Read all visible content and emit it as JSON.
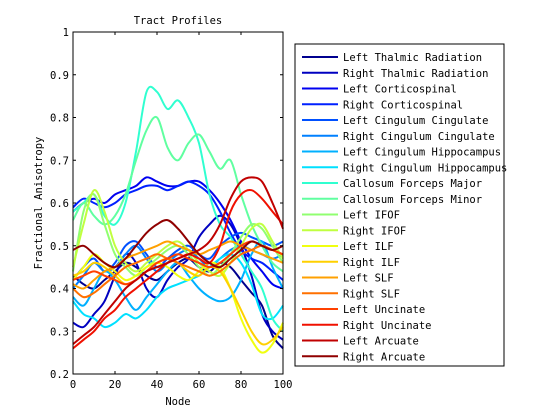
{
  "chart_data": {
    "type": "line",
    "title": "Tract Profiles",
    "xlabel": "Node",
    "ylabel": "Fractional Anisotropy",
    "xlim": [
      0,
      100
    ],
    "ylim": [
      0.2,
      1.0
    ],
    "xticks": [
      0,
      20,
      40,
      60,
      80,
      100
    ],
    "xtick_labels": [
      "0",
      "20",
      "40",
      "60",
      "80",
      "100"
    ],
    "yticks": [
      0.2,
      0.3,
      0.4,
      0.5,
      0.6,
      0.7,
      0.8,
      0.9,
      1.0
    ],
    "ytick_labels": [
      "0.2",
      "0.3",
      "0.4",
      "0.5",
      "0.6",
      "0.7",
      "0.8",
      "0.9",
      "1"
    ],
    "grid": false,
    "legend_position": "outside-right",
    "x": [
      0,
      5,
      10,
      15,
      20,
      25,
      30,
      35,
      40,
      45,
      50,
      55,
      60,
      65,
      70,
      75,
      80,
      85,
      90,
      95,
      100
    ],
    "series": [
      {
        "name": "Left Thalmic Radiation",
        "color": "#00008f",
        "values": [
          0.43,
          0.41,
          0.4,
          0.42,
          0.44,
          0.46,
          0.45,
          0.43,
          0.42,
          0.44,
          0.46,
          0.47,
          0.45,
          0.44,
          0.46,
          0.45,
          0.42,
          0.39,
          0.36,
          0.29,
          0.26
        ]
      },
      {
        "name": "Right Thalmic Radiation",
        "color": "#0000c0",
        "values": [
          0.32,
          0.31,
          0.34,
          0.37,
          0.43,
          0.48,
          0.46,
          0.4,
          0.38,
          0.42,
          0.45,
          0.47,
          0.52,
          0.55,
          0.57,
          0.55,
          0.5,
          0.43,
          0.34,
          0.3,
          0.28
        ]
      },
      {
        "name": "Left Corticospinal",
        "color": "#0000f0",
        "values": [
          0.58,
          0.6,
          0.61,
          0.6,
          0.62,
          0.63,
          0.64,
          0.66,
          0.65,
          0.64,
          0.64,
          0.65,
          0.65,
          0.63,
          0.6,
          0.56,
          0.51,
          0.47,
          0.44,
          0.41,
          0.4
        ]
      },
      {
        "name": "Right Corticospinal",
        "color": "#0020ff",
        "values": [
          0.59,
          0.61,
          0.6,
          0.59,
          0.6,
          0.62,
          0.63,
          0.64,
          0.64,
          0.63,
          0.64,
          0.65,
          0.64,
          0.62,
          0.58,
          0.53,
          0.49,
          0.47,
          0.46,
          0.44,
          0.42
        ]
      },
      {
        "name": "Left Cingulum Cingulate",
        "color": "#0050ff",
        "values": [
          0.42,
          0.45,
          0.47,
          0.44,
          0.46,
          0.5,
          0.51,
          0.48,
          0.45,
          0.47,
          0.49,
          0.5,
          0.48,
          0.47,
          0.5,
          0.52,
          0.53,
          0.52,
          0.51,
          0.5,
          0.51
        ]
      },
      {
        "name": "Right Cingulum Cingulate",
        "color": "#0080ff",
        "values": [
          0.4,
          0.43,
          0.46,
          0.44,
          0.45,
          0.48,
          0.5,
          0.47,
          0.44,
          0.46,
          0.48,
          0.49,
          0.47,
          0.45,
          0.47,
          0.49,
          0.5,
          0.49,
          0.48,
          0.47,
          0.48
        ]
      },
      {
        "name": "Left Cingulum Hippocampus",
        "color": "#00b0ff",
        "values": [
          0.38,
          0.36,
          0.4,
          0.44,
          0.42,
          0.38,
          0.35,
          0.38,
          0.41,
          0.44,
          0.46,
          0.43,
          0.4,
          0.38,
          0.37,
          0.38,
          0.42,
          0.48,
          0.51,
          0.45,
          0.4
        ]
      },
      {
        "name": "Right Cingulum Hippocampus",
        "color": "#00e0ff",
        "values": [
          0.37,
          0.34,
          0.33,
          0.31,
          0.32,
          0.34,
          0.33,
          0.35,
          0.38,
          0.4,
          0.41,
          0.42,
          0.43,
          0.45,
          0.47,
          0.48,
          0.46,
          0.41,
          0.34,
          0.33,
          0.36
        ]
      },
      {
        "name": "Callosum Forceps Major",
        "color": "#30ffd0",
        "values": [
          0.58,
          0.6,
          0.62,
          0.57,
          0.55,
          0.6,
          0.72,
          0.86,
          0.86,
          0.82,
          0.84,
          0.8,
          0.74,
          0.62,
          0.55,
          0.52,
          0.48,
          0.44,
          0.4,
          0.33,
          0.3
        ]
      },
      {
        "name": "Callosum Forceps Minor",
        "color": "#60ffa0",
        "values": [
          0.56,
          0.6,
          0.57,
          0.55,
          0.57,
          0.62,
          0.7,
          0.77,
          0.8,
          0.73,
          0.7,
          0.74,
          0.76,
          0.72,
          0.68,
          0.7,
          0.62,
          0.55,
          0.5,
          0.46,
          0.44
        ]
      },
      {
        "name": "Left IFOF",
        "color": "#90ff70",
        "values": [
          0.44,
          0.58,
          0.62,
          0.55,
          0.48,
          0.45,
          0.43,
          0.45,
          0.47,
          0.49,
          0.5,
          0.48,
          0.45,
          0.43,
          0.45,
          0.48,
          0.52,
          0.55,
          0.54,
          0.5,
          0.46
        ]
      },
      {
        "name": "Right IFOF",
        "color": "#c0ff40",
        "values": [
          0.45,
          0.55,
          0.63,
          0.58,
          0.5,
          0.46,
          0.44,
          0.46,
          0.48,
          0.5,
          0.51,
          0.49,
          0.46,
          0.44,
          0.43,
          0.46,
          0.5,
          0.54,
          0.55,
          0.51,
          0.47
        ]
      },
      {
        "name": "Left ILF",
        "color": "#f0ff10",
        "values": [
          0.42,
          0.45,
          0.48,
          0.46,
          0.44,
          0.42,
          0.43,
          0.45,
          0.46,
          0.45,
          0.43,
          0.42,
          0.44,
          0.46,
          0.45,
          0.4,
          0.33,
          0.28,
          0.25,
          0.27,
          0.32
        ]
      },
      {
        "name": "Right ILF",
        "color": "#ffd000",
        "values": [
          0.43,
          0.44,
          0.46,
          0.45,
          0.43,
          0.41,
          0.42,
          0.44,
          0.46,
          0.47,
          0.46,
          0.44,
          0.43,
          0.45,
          0.44,
          0.4,
          0.35,
          0.3,
          0.27,
          0.28,
          0.31
        ]
      },
      {
        "name": "Left SLF",
        "color": "#ffa000",
        "values": [
          0.41,
          0.4,
          0.42,
          0.44,
          0.45,
          0.47,
          0.48,
          0.49,
          0.5,
          0.51,
          0.5,
          0.49,
          0.48,
          0.49,
          0.5,
          0.51,
          0.5,
          0.49,
          0.48,
          0.47,
          0.46
        ]
      },
      {
        "name": "Right SLF",
        "color": "#ff7000",
        "values": [
          0.4,
          0.38,
          0.39,
          0.41,
          0.43,
          0.45,
          0.46,
          0.47,
          0.48,
          0.47,
          0.46,
          0.45,
          0.44,
          0.43,
          0.44,
          0.46,
          0.48,
          0.49,
          0.5,
          0.49,
          0.48
        ]
      },
      {
        "name": "Left Uncinate",
        "color": "#ff4000",
        "values": [
          0.42,
          0.43,
          0.44,
          0.43,
          0.42,
          0.41,
          0.42,
          0.44,
          0.46,
          0.47,
          0.48,
          0.47,
          0.46,
          0.45,
          0.46,
          0.48,
          0.5,
          0.51,
          0.5,
          0.49,
          0.48
        ]
      },
      {
        "name": "Right Uncinate",
        "color": "#f01000",
        "values": [
          0.26,
          0.28,
          0.3,
          0.33,
          0.35,
          0.38,
          0.4,
          0.42,
          0.44,
          0.46,
          0.47,
          0.48,
          0.47,
          0.46,
          0.5,
          0.58,
          0.62,
          0.63,
          0.61,
          0.58,
          0.55
        ]
      },
      {
        "name": "Left Arcuate",
        "color": "#c00000",
        "values": [
          0.27,
          0.29,
          0.31,
          0.34,
          0.37,
          0.4,
          0.42,
          0.44,
          0.45,
          0.46,
          0.47,
          0.48,
          0.49,
          0.51,
          0.55,
          0.61,
          0.65,
          0.66,
          0.65,
          0.6,
          0.54
        ]
      },
      {
        "name": "Right Arcuate",
        "color": "#900000",
        "values": [
          0.49,
          0.5,
          0.48,
          0.46,
          0.45,
          0.47,
          0.5,
          0.53,
          0.55,
          0.56,
          0.54,
          0.51,
          0.48,
          0.46,
          0.45,
          0.47,
          0.49,
          0.51,
          0.5,
          0.49,
          0.5
        ]
      }
    ]
  }
}
